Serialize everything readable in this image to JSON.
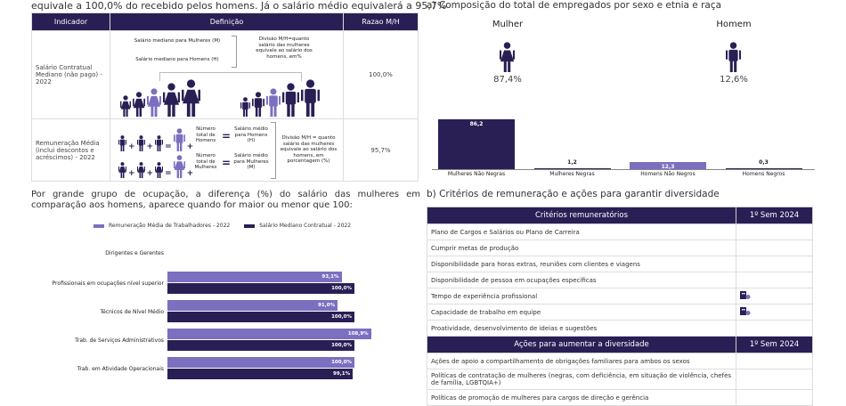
{
  "intro_text": "equivale a 100,0% do recebido pelos homens. Já o salário médio equivalerá a 95,7%",
  "indicator_table": {
    "headers": [
      "Indicador",
      "Definição",
      "Razao M/H"
    ],
    "rows": [
      {
        "indicador": "Salário Contratual Mediano (não pago) - 2022",
        "def_line1": "Salário mediano para Mulheres (M)",
        "def_line2": "Salário mediano para Homens (H)",
        "def_note": "Divisão M/H=quanto salário das mulheres equivale ao salário dos homens, em%",
        "razao": "100,0%"
      },
      {
        "indicador": "Remuneração Média (inclui descontos e acréscimos) - 2022",
        "def_h_count": "Número total de Homens",
        "def_h_avg": "Salário médio para Homens (H)",
        "def_m_count": "Número total de Mulheres",
        "def_m_avg": "Salário médio para Mulheres (M)",
        "def_note": "Divisão M/H = quanto salário das mulheres equivale ao salário dos homens, em porcentagem (%)",
        "razao": "95,7%"
      }
    ]
  },
  "composition": {
    "title": "a) Composição do total de empregados por sexo e etnia e raça",
    "mulher_label": "Mulher",
    "mulher_pct": "87,4%",
    "homem_label": "Homem",
    "homem_pct": "12,6%"
  },
  "occupation_intro": "Por grande grupo de ocupação, a diferença (%) do salário das mulheres em comparação aos homens, aparece quando for maior ou menor que 100:",
  "criteria": {
    "title": "b) Critérios de remuneração e ações para garantir diversidade",
    "header1": "Critérios remuneratórios",
    "header1_col": "1º Sem 2024",
    "rows": [
      {
        "label": "Plano de Cargos e Salários ou Plano de Carreira",
        "checked": false
      },
      {
        "label": "Cumprir metas de produção",
        "checked": false
      },
      {
        "label": "Disponibilidade para horas extras, reuniões com clientes e viagens",
        "checked": false
      },
      {
        "label": "Disponibilidade de pessoa em ocupações específicas",
        "checked": false
      },
      {
        "label": "Tempo de experiência profissional",
        "checked": true
      },
      {
        "label": "Capacidade de trabalho em equipe",
        "checked": true
      },
      {
        "label": "Proatividade, desenvolvimento de ideias e sugestões",
        "checked": false
      }
    ],
    "header2": "Ações para aumentar a diversidade",
    "header2_col": "1º Sem 2024",
    "actions": [
      {
        "label": "Ações de apoio a compartilhamento de obrigações familiares para ambos os sexos"
      },
      {
        "label": "Políticas de contratação de mulheres (negras, com deficiência, em situação de violência, chefes de família, LGBTQIA+)"
      },
      {
        "label": "Políticas de promoção de mulheres para cargos de direção e gerência"
      }
    ],
    "check_icon": "building-check-icon",
    "accent": "#7b6fc0"
  },
  "chart_data": [
    {
      "type": "bar",
      "categories": [
        "Mulheres Não Negras",
        "Mulheres Negras",
        "Homens Não Negros",
        "Homens Negros"
      ],
      "values": [
        86.2,
        1.2,
        12.3,
        0.3
      ],
      "labels": [
        "86,2",
        "1,2",
        "12,3",
        "0,3"
      ],
      "colors": [
        "#2a1f55",
        "#2a1f55",
        "#7b6fc0",
        "#2a1f55"
      ],
      "ylim": [
        0,
        100
      ],
      "grid": false
    },
    {
      "type": "bar",
      "orientation": "horizontal",
      "categories": [
        "Dirigentes e Gerentes",
        "Profissionais em ocupações nível superior",
        "Técnicos de Nível Médio",
        "Trab. de Serviços Administrativos",
        "Trab. em Atividade Operacionais"
      ],
      "series": [
        {
          "name": "Remuneração Média de Trabalhadores - 2022",
          "color": "#7b6fc0",
          "values": [
            null,
            93.1,
            91.0,
            108.9,
            100.0
          ],
          "labels": [
            "",
            "93,1%",
            "91,0%",
            "108,9%",
            "100,0%"
          ]
        },
        {
          "name": "Salário Mediano Contratual - 2022",
          "color": "#2a1f55",
          "values": [
            null,
            100.0,
            100.0,
            100.0,
            99.1
          ],
          "labels": [
            "",
            "100,0%",
            "100,0%",
            "100,0%",
            "99,1%"
          ]
        }
      ],
      "legend": "top",
      "grid": false
    }
  ]
}
